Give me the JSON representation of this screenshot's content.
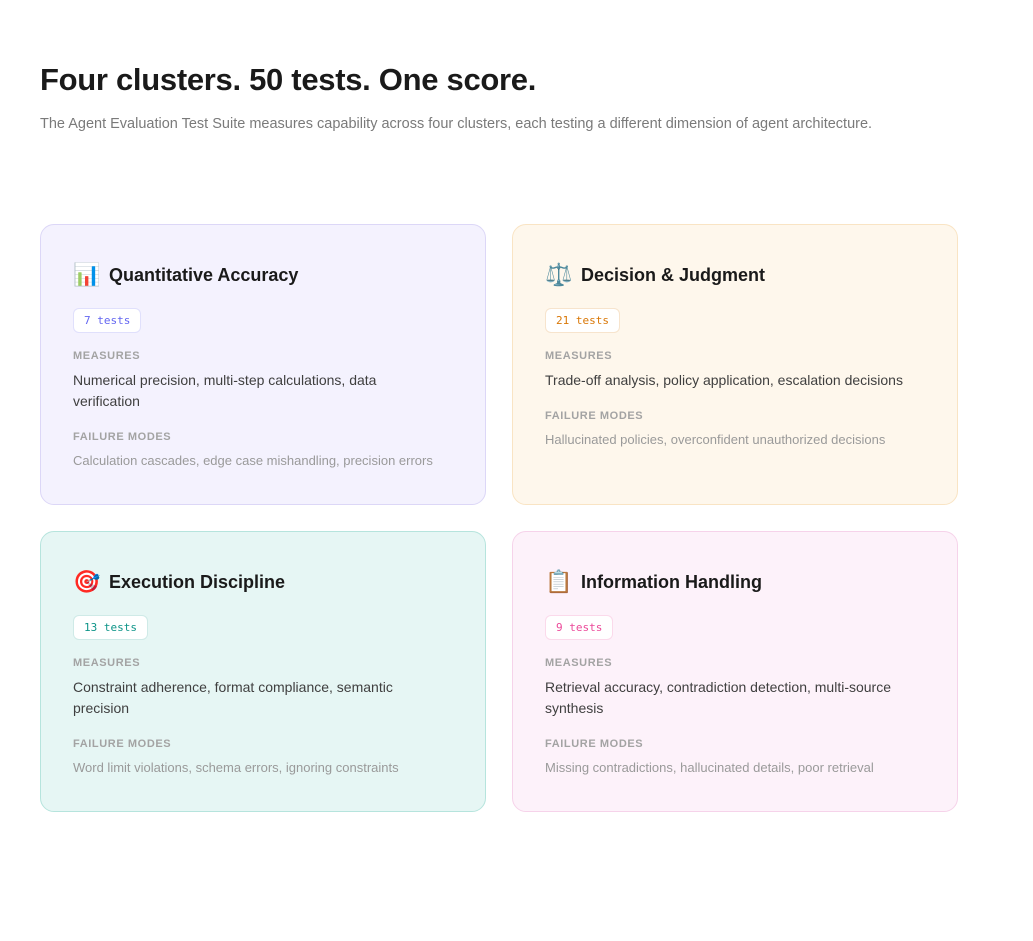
{
  "header": {
    "title": "Four clusters. 50 tests. One score.",
    "subtitle": "The Agent Evaluation Test Suite measures capability across four clusters, each testing a different dimension of agent architecture."
  },
  "labels": {
    "measures": "MEASURES",
    "failure_modes": "FAILURE MODES"
  },
  "clusters": [
    {
      "icon": "📊",
      "icon_name": "bar-chart-icon",
      "name": "Quantitative Accuracy",
      "tests": "7 tests",
      "accent": "#6366f1",
      "measures": "Numerical precision, multi-step calculations, data verification",
      "failure_modes": "Calculation cascades, edge case mishandling, precision errors"
    },
    {
      "icon": "⚖️",
      "icon_name": "scales-icon",
      "name": "Decision & Judgment",
      "tests": "21 tests",
      "accent": "#d97706",
      "measures": "Trade-off analysis, policy application, escalation decisions",
      "failure_modes": "Hallucinated policies, overconfident unauthorized decisions"
    },
    {
      "icon": "🎯",
      "icon_name": "target-icon",
      "name": "Execution Discipline",
      "tests": "13 tests",
      "accent": "#0d9488",
      "measures": "Constraint adherence, format compliance, semantic precision",
      "failure_modes": "Word limit violations, schema errors, ignoring constraints"
    },
    {
      "icon": "📋",
      "icon_name": "clipboard-icon",
      "name": "Information Handling",
      "tests": "9 tests",
      "accent": "#ec4899",
      "measures": "Retrieval accuracy, contradiction detection, multi-source synthesis",
      "failure_modes": "Missing contradictions, hallucinated details, poor retrieval"
    }
  ]
}
